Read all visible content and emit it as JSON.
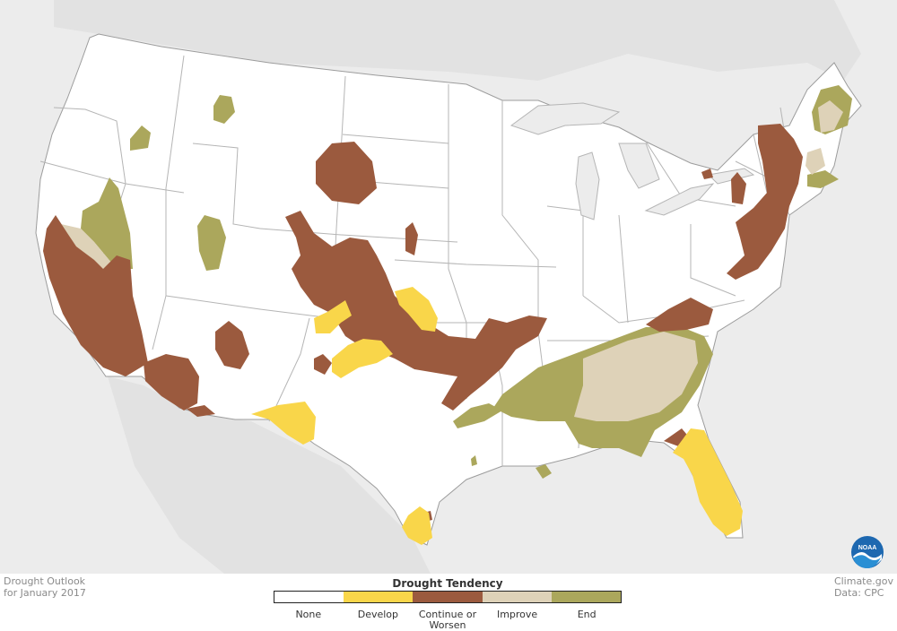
{
  "map": {
    "legend_title": "Drought Tendency",
    "categories": [
      {
        "label": "None",
        "color": "#ffffff"
      },
      {
        "label": "Develop",
        "color": "#f9d64a"
      },
      {
        "label": "Continue or Worsen",
        "color": "#9b5a3e"
      },
      {
        "label": "Improve",
        "color": "#ded2b8"
      },
      {
        "label": "End",
        "color": "#aba75c"
      }
    ]
  },
  "caption": {
    "line1": "Drought Outlook",
    "line2": "for January 2017"
  },
  "credits": {
    "line1": "Climate.gov",
    "line2": "Data: CPC"
  },
  "logo": {
    "text": "NOAA"
  },
  "colors": {
    "land": "#ffffff",
    "background": "#ececec",
    "borders": "#b5b5b5"
  }
}
